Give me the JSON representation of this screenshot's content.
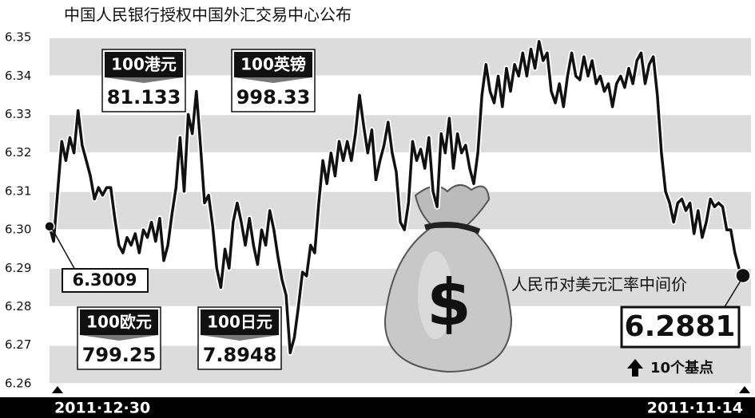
{
  "chart_data": {
    "type": "line",
    "title": "中国人民银行授权中国外汇交易中心公布",
    "categories": [
      "2011·12·30",
      null,
      null,
      null,
      null,
      null,
      null,
      null,
      null,
      null,
      null,
      null,
      null,
      null,
      null,
      null,
      null,
      null,
      null,
      null,
      null,
      null,
      null,
      null,
      null,
      null,
      null,
      null,
      null,
      null,
      null,
      null,
      null,
      null,
      null,
      null,
      null,
      null,
      null,
      null,
      null,
      null,
      null,
      null,
      null,
      null,
      null,
      null,
      null,
      null,
      null,
      null,
      null,
      null,
      null,
      null,
      null,
      null,
      null,
      null,
      null,
      null,
      null,
      null,
      null,
      null,
      null,
      null,
      null,
      null,
      null,
      null,
      null,
      null,
      null,
      null,
      null,
      null,
      null,
      null,
      null,
      null,
      null,
      null,
      null,
      null,
      null,
      null,
      null,
      null,
      null,
      null,
      null,
      null,
      null,
      null,
      null,
      null,
      null,
      null,
      null,
      null,
      null,
      null,
      null,
      null,
      null,
      null,
      null,
      null,
      null,
      null,
      null,
      null,
      null,
      null,
      null,
      null,
      null,
      null,
      null,
      null,
      null,
      null,
      null,
      null,
      null,
      null,
      null,
      null,
      null,
      null,
      null,
      null,
      null,
      null,
      null,
      null,
      null,
      null,
      null,
      null,
      null,
      null,
      null,
      null,
      null,
      null,
      null,
      null,
      null,
      null,
      null,
      null,
      null,
      null,
      null,
      null,
      null,
      null,
      null,
      null,
      null,
      null,
      null,
      null,
      null,
      null,
      null,
      null,
      "2011·11·14"
    ],
    "values": [
      6.3009,
      6.297,
      6.31,
      6.323,
      6.318,
      6.324,
      6.32,
      6.331,
      6.322,
      6.318,
      6.314,
      6.308,
      6.311,
      6.309,
      6.311,
      6.311,
      6.303,
      6.296,
      6.294,
      6.298,
      6.296,
      6.299,
      6.294,
      6.3,
      6.298,
      6.302,
      6.297,
      6.303,
      6.292,
      6.296,
      6.304,
      6.311,
      6.324,
      6.31,
      6.33,
      6.325,
      6.336,
      6.322,
      6.307,
      6.309,
      6.301,
      6.29,
      6.285,
      6.295,
      6.29,
      6.302,
      6.307,
      6.302,
      6.296,
      6.303,
      6.296,
      6.291,
      6.3,
      6.296,
      6.305,
      6.3,
      6.293,
      6.287,
      6.283,
      6.268,
      6.272,
      6.28,
      6.289,
      6.288,
      6.296,
      6.294,
      6.307,
      6.318,
      6.312,
      6.32,
      6.314,
      6.323,
      6.318,
      6.323,
      6.318,
      6.325,
      6.335,
      6.327,
      6.32,
      6.326,
      6.313,
      6.318,
      6.322,
      6.328,
      6.32,
      6.315,
      6.302,
      6.3,
      6.307,
      6.323,
      6.318,
      6.321,
      6.316,
      6.324,
      6.31,
      6.306,
      6.325,
      6.32,
      6.329,
      6.316,
      6.325,
      6.32,
      6.322,
      6.316,
      6.312,
      6.32,
      6.335,
      6.343,
      6.336,
      6.333,
      6.34,
      6.332,
      6.342,
      6.336,
      6.343,
      6.34,
      6.346,
      6.34,
      6.347,
      6.342,
      6.349,
      6.344,
      6.346,
      6.336,
      6.333,
      6.338,
      6.332,
      6.34,
      6.346,
      6.34,
      6.339,
      6.345,
      6.34,
      6.344,
      6.338,
      6.34,
      6.336,
      6.338,
      6.332,
      6.338,
      6.34,
      6.337,
      6.342,
      6.338,
      6.344,
      6.346,
      6.338,
      6.343,
      6.345,
      6.335,
      6.32,
      6.31,
      6.307,
      6.302,
      6.307,
      6.308,
      6.305,
      6.307,
      6.299,
      6.305,
      6.298,
      6.302,
      6.308,
      6.306,
      6.307,
      6.306,
      6.3,
      6.3,
      6.294,
      6.29,
      6.2881
    ],
    "color": "#111111",
    "ylim": [
      6.258,
      6.352
    ],
    "yticks": [
      6.26,
      6.27,
      6.28,
      6.29,
      {
        "value": 6.3,
        "label": "6.30"
      },
      6.31,
      6.32,
      6.33,
      6.34,
      6.35
    ],
    "grid": true,
    "annotations": {
      "rate_boxes": [
        {
          "label": "100港元",
          "value": 81.133
        },
        {
          "label": "100英镑",
          "value": 998.33
        },
        {
          "label": "100欧元",
          "value": 799.25
        },
        {
          "label": "100日元",
          "value": 7.8948
        }
      ],
      "series_label": "人民币对美元汇率中间价",
      "change_label": "10个基点",
      "bag_symbol": "$"
    }
  }
}
